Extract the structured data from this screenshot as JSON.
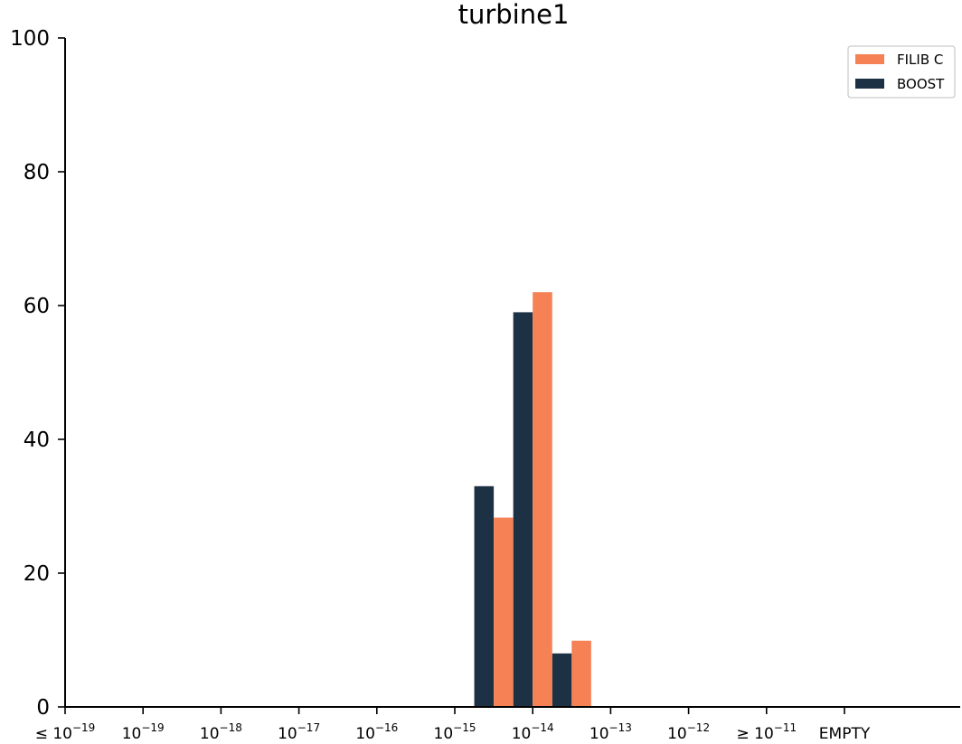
{
  "chart_data": {
    "type": "bar",
    "title": "turbine1",
    "xlabel": "",
    "ylabel": "",
    "ylim": [
      0,
      100
    ],
    "yticks": [
      "0",
      "20",
      "40",
      "60",
      "80",
      "100"
    ],
    "categories": [
      {
        "prefix": "≤ ",
        "base": "10",
        "exp": "−19"
      },
      {
        "prefix": "",
        "base": "10",
        "exp": "−19"
      },
      {
        "prefix": "",
        "base": "10",
        "exp": "−18"
      },
      {
        "prefix": "",
        "base": "10",
        "exp": "−17"
      },
      {
        "prefix": "",
        "base": "10",
        "exp": "−16"
      },
      {
        "prefix": "",
        "base": "10",
        "exp": "−15"
      },
      {
        "prefix": "",
        "base": "10",
        "exp": "−14"
      },
      {
        "prefix": "",
        "base": "10",
        "exp": "−13"
      },
      {
        "prefix": "",
        "base": "10",
        "exp": "−12"
      },
      {
        "prefix": "≥ ",
        "base": "10",
        "exp": "−11"
      },
      {
        "prefix": "",
        "base": "EMPTY",
        "exp": ""
      }
    ],
    "bin_edges": [
      {
        "series": "BOOST",
        "values": [
          33,
          59,
          8
        ]
      },
      {
        "series": "FILIB C",
        "values": [
          28.3,
          62,
          9.9
        ]
      }
    ],
    "series": [
      {
        "name": "BOOST",
        "color": "#1d3145",
        "values": [
          0,
          0,
          0,
          0,
          0,
          0,
          0,
          0,
          0,
          0,
          0
        ],
        "bars": [
          {
            "start_tick": 5.25,
            "end_tick": 5.5,
            "value": 33
          },
          {
            "start_tick": 5.75,
            "end_tick": 6.0,
            "value": 59
          },
          {
            "start_tick": 6.25,
            "end_tick": 6.5,
            "value": 8
          }
        ]
      },
      {
        "name": "FILIB C",
        "color": "#f58154",
        "values": [
          0,
          0,
          0,
          0,
          0,
          0,
          0,
          0,
          0,
          0,
          0
        ],
        "bars": [
          {
            "start_tick": 5.5,
            "end_tick": 5.75,
            "value": 28.3
          },
          {
            "start_tick": 6.0,
            "end_tick": 6.25,
            "value": 62
          },
          {
            "start_tick": 6.5,
            "end_tick": 6.75,
            "value": 9.9
          }
        ]
      }
    ],
    "legend": {
      "placement": "top-right",
      "entries": [
        {
          "label": "FILIB C",
          "color": "#f58154"
        },
        {
          "label": "BOOST",
          "color": "#1d3145"
        }
      ]
    },
    "grid": false
  }
}
